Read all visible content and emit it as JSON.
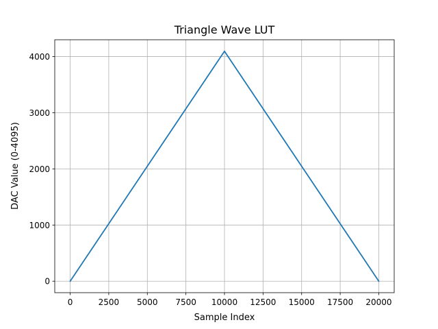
{
  "chart_data": {
    "type": "line",
    "title": "Triangle Wave LUT",
    "xlabel": "Sample Index",
    "ylabel": "DAC Value (0-4095)",
    "xlim": [
      -1000,
      21000
    ],
    "ylim": [
      -204.75,
      4299.75
    ],
    "xticks": [
      0,
      2500,
      5000,
      7500,
      10000,
      12500,
      15000,
      17500,
      20000
    ],
    "xtick_labels": [
      "0",
      "2500",
      "5000",
      "7500",
      "10000",
      "12500",
      "15000",
      "17500",
      "20000"
    ],
    "yticks": [
      0,
      1000,
      2000,
      3000,
      4000
    ],
    "ytick_labels": [
      "0",
      "1000",
      "2000",
      "3000",
      "4000"
    ],
    "grid": true,
    "series": [
      {
        "color": "#1f77b4",
        "x": [
          0,
          10000,
          20000
        ],
        "y": [
          0,
          4095,
          0
        ]
      }
    ]
  }
}
